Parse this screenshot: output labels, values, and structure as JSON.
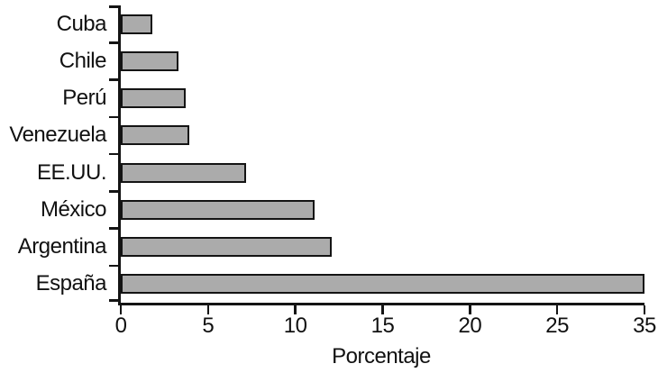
{
  "chart_data": {
    "type": "bar",
    "orientation": "horizontal",
    "title": "",
    "xlabel": "Porcentaje",
    "ylabel": "",
    "categories": [
      "Cuba",
      "Chile",
      "Perú",
      "Venezuela",
      "EE.UU.",
      "México",
      "Argentina",
      "España"
    ],
    "values": [
      1.8,
      3.3,
      3.7,
      3.9,
      7.2,
      11.1,
      12.1,
      35
    ],
    "x_ticks": [
      0,
      5,
      10,
      15,
      20,
      25,
      35
    ],
    "axis_note": "ticks are evenly spaced; last printed interval jumps from 25 to 35 as in the original figure",
    "grid": false,
    "legend": false,
    "bar_color": "#ababab",
    "bar_border_color": "#141414",
    "axis_color": "#141414",
    "text_color": "#111111",
    "background_color": "#ffffff"
  }
}
